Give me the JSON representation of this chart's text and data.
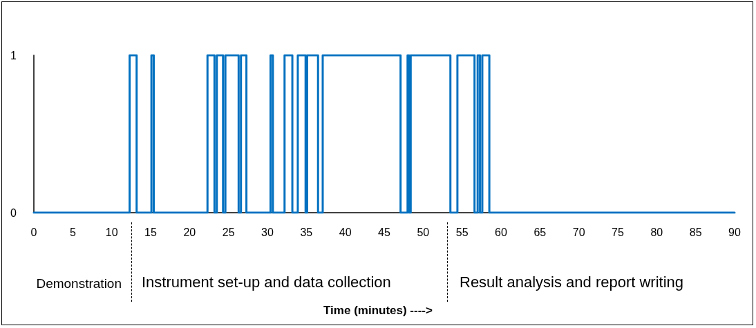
{
  "chart_data": {
    "type": "step",
    "x": [
      0,
      12.3,
      13.2,
      15.1,
      15.4,
      22.3,
      23.2,
      23.5,
      24.3,
      24.6,
      26.3,
      26.6,
      27.3,
      30.4,
      30.7,
      32.2,
      33.2,
      33.9,
      34.9,
      35.1,
      36.5,
      37.1,
      47.1,
      48.0,
      48.2,
      48.4,
      53.5,
      54.4,
      56.6,
      57.0,
      57.3,
      57.6,
      58.5,
      90
    ],
    "series": [
      {
        "color": "#0070c0",
        "values": [
          0,
          1,
          0,
          1,
          0,
          1,
          0,
          1,
          0,
          1,
          0,
          1,
          0,
          1,
          0,
          1,
          0,
          1,
          0,
          1,
          0,
          1,
          0,
          1,
          0,
          1,
          0,
          1,
          0,
          1,
          0,
          1,
          0,
          0
        ]
      }
    ],
    "xlim": [
      0,
      90
    ],
    "xticks": [
      0,
      5,
      10,
      15,
      20,
      25,
      30,
      35,
      40,
      45,
      50,
      55,
      60,
      65,
      70,
      75,
      80,
      85,
      90
    ],
    "ylim": [
      0,
      1
    ],
    "yticks": [
      0,
      1
    ],
    "grid": false,
    "marker": "none",
    "line_style": "solid",
    "annotations": [
      "Demonstration",
      "Instrument set-up and data collection",
      "Result analysis and report writing",
      "Time (minutes) ---->"
    ]
  }
}
